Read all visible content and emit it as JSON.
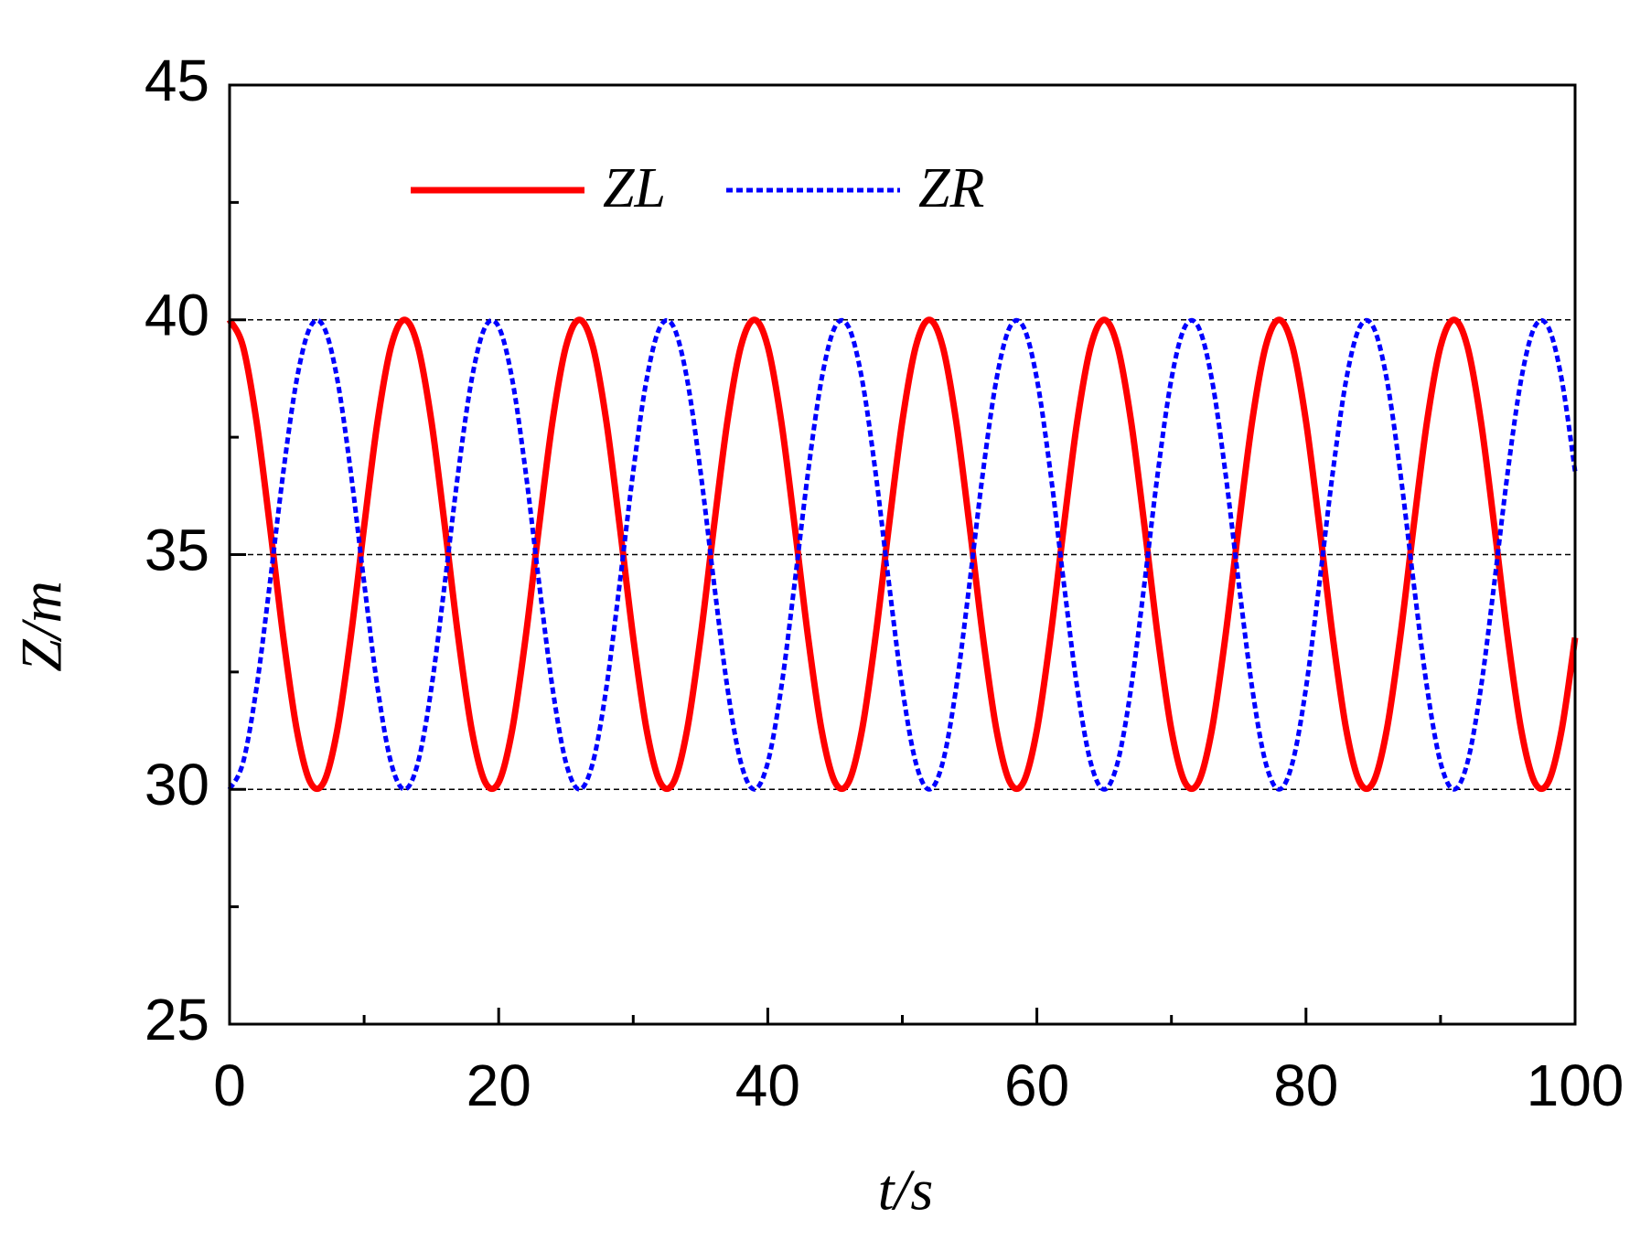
{
  "chart_data": {
    "type": "line",
    "xlabel": "t/s",
    "ylabel": "Z/m",
    "x": [
      0,
      1,
      2,
      3,
      4,
      5,
      6,
      7,
      8,
      9,
      10,
      11,
      12,
      13,
      14,
      15,
      16,
      17,
      18,
      19,
      20,
      21,
      22,
      23,
      24,
      25,
      26,
      27,
      28,
      29,
      30,
      31,
      32,
      33,
      34,
      35,
      36,
      37,
      38,
      39,
      40,
      41,
      42,
      43,
      44,
      45,
      46,
      47,
      48,
      49,
      50,
      51,
      52,
      53,
      54,
      55,
      56,
      57,
      58,
      59,
      60,
      61,
      62,
      63,
      64,
      65,
      66,
      67,
      68,
      69,
      70,
      71,
      72,
      73,
      74,
      75,
      76,
      77,
      78,
      79,
      80,
      81,
      82,
      83,
      84,
      85,
      86,
      87,
      88,
      89,
      90,
      91,
      92,
      93,
      94,
      95,
      96,
      97,
      98,
      99,
      100
    ],
    "series": [
      {
        "name": "ZL",
        "color": "#ff0000",
        "dash": "solid",
        "values": [
          40,
          39.43,
          37.84,
          35.6,
          33.23,
          31.26,
          30.15,
          30.15,
          31.26,
          33.23,
          35.6,
          37.84,
          39.43,
          40,
          39.43,
          37.84,
          35.6,
          33.23,
          31.26,
          30.15,
          30.15,
          31.26,
          33.23,
          35.6,
          37.84,
          39.43,
          40,
          39.43,
          37.84,
          35.6,
          33.23,
          31.26,
          30.15,
          30.15,
          31.26,
          33.23,
          35.6,
          37.84,
          39.43,
          40,
          39.43,
          37.84,
          35.6,
          33.23,
          31.26,
          30.15,
          30.15,
          31.26,
          33.23,
          35.6,
          37.84,
          39.43,
          40,
          39.43,
          37.84,
          35.6,
          33.23,
          31.26,
          30.15,
          30.15,
          31.26,
          33.23,
          35.6,
          37.84,
          39.43,
          40,
          39.43,
          37.84,
          35.6,
          33.23,
          31.26,
          30.15,
          30.15,
          31.26,
          33.23,
          35.6,
          37.84,
          39.43,
          40,
          39.43,
          37.84,
          35.6,
          33.23,
          31.26,
          30.15,
          30.15,
          31.26,
          33.23,
          35.6,
          37.84,
          39.43,
          40,
          39.43,
          37.84,
          35.6,
          33.23,
          31.26,
          30.15,
          30.15,
          31.26,
          33.23
        ]
      },
      {
        "name": "ZR",
        "color": "#0000ff",
        "dash": "dotted",
        "values": [
          30,
          30.57,
          32.16,
          34.4,
          36.77,
          38.74,
          39.85,
          39.85,
          38.74,
          36.77,
          34.4,
          32.16,
          30.57,
          30,
          30.57,
          32.16,
          34.4,
          36.77,
          38.74,
          39.85,
          39.85,
          38.74,
          36.77,
          34.4,
          32.16,
          30.57,
          30,
          30.57,
          32.16,
          34.4,
          36.77,
          38.74,
          39.85,
          39.85,
          38.74,
          36.77,
          34.4,
          32.16,
          30.57,
          30,
          30.57,
          32.16,
          34.4,
          36.77,
          38.74,
          39.85,
          39.85,
          38.74,
          36.77,
          34.4,
          32.16,
          30.57,
          30,
          30.57,
          32.16,
          34.4,
          36.77,
          38.74,
          39.85,
          39.85,
          38.74,
          36.77,
          34.4,
          32.16,
          30.57,
          30,
          30.57,
          32.16,
          34.4,
          36.77,
          38.74,
          39.85,
          39.85,
          38.74,
          36.77,
          34.4,
          32.16,
          30.57,
          30,
          30.57,
          32.16,
          34.4,
          36.77,
          38.74,
          39.85,
          39.85,
          38.74,
          36.77,
          34.4,
          32.16,
          30.57,
          30,
          30.57,
          32.16,
          34.4,
          36.77,
          38.74,
          39.85,
          39.85,
          38.74,
          36.77
        ]
      }
    ],
    "xlim": [
      0,
      100
    ],
    "xticks": [
      0,
      20,
      40,
      60,
      80,
      100
    ],
    "xminor": [
      10,
      30,
      50,
      70,
      90
    ],
    "ylim": [
      25,
      45
    ],
    "yticks": [
      25,
      30,
      35,
      40,
      45
    ],
    "yminor": [
      27.5,
      32.5,
      37.5,
      42.5
    ],
    "reference_lines": [
      30,
      35,
      40
    ],
    "legend": "top-left"
  }
}
